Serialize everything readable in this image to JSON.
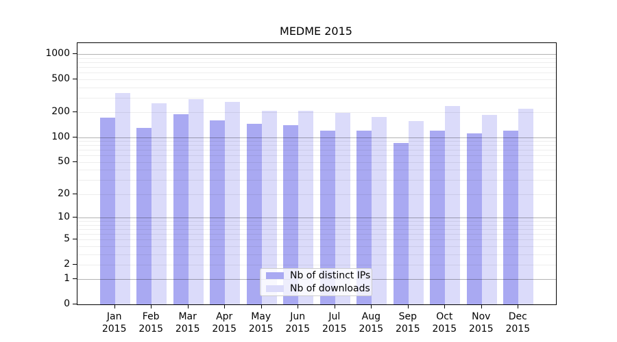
{
  "chart_data": {
    "type": "bar",
    "title": "MEDME 2015",
    "categories": [
      "Jan 2015",
      "Feb 2015",
      "Mar 2015",
      "Apr 2015",
      "May 2015",
      "Jun 2015",
      "Jul 2015",
      "Aug 2015",
      "Sep 2015",
      "Oct 2015",
      "Nov 2015",
      "Dec 2015"
    ],
    "series": [
      {
        "name": "Nb of distinct IPs",
        "color": "#a9a9f2",
        "values": [
          174,
          130,
          190,
          161,
          147,
          139,
          121,
          121,
          86,
          120,
          112,
          121
        ]
      },
      {
        "name": "Nb of downloads",
        "color": "#dbdbfa",
        "values": [
          340,
          255,
          290,
          265,
          210,
          210,
          196,
          176,
          157,
          240,
          187,
          221
        ]
      }
    ],
    "xlabel": "",
    "ylabel": "",
    "yscale": "log1p",
    "ylim": [
      0,
      1360
    ],
    "yticks": [
      1000,
      500,
      200,
      100,
      50,
      20,
      10,
      5,
      2,
      1,
      0
    ],
    "grid": "horizontal major+minor",
    "legend_position": "lower center"
  },
  "colors": {
    "axis": "#000000",
    "major_grid": "rgba(0,0,0,0.30)",
    "minor_grid": "rgba(0,0,0,0.07)",
    "legend_border": "#cccccc"
  }
}
